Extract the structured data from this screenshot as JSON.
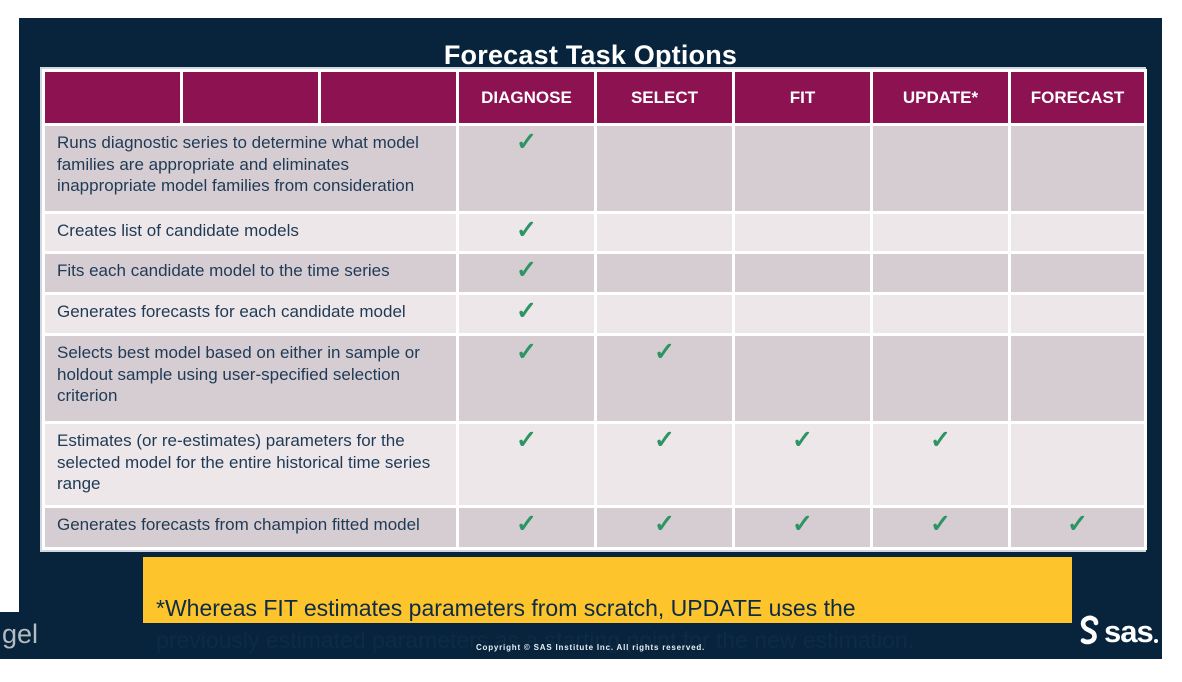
{
  "title": "Forecast Task Options",
  "table": {
    "columns": [
      "DIAGNOSE",
      "SELECT",
      "FIT",
      "UPDATE*",
      "FORECAST"
    ],
    "check_glyph": "✓",
    "rows": [
      {
        "task": "Runs diagnostic series to determine what model families are appropriate and eliminates inappropriate model families from consideration",
        "checks": [
          true,
          false,
          false,
          false,
          false
        ]
      },
      {
        "task": "Creates list of candidate models",
        "checks": [
          true,
          false,
          false,
          false,
          false
        ]
      },
      {
        "task": "Fits each candidate model to the time series",
        "checks": [
          true,
          false,
          false,
          false,
          false
        ]
      },
      {
        "task": "Generates forecasts for each candidate model",
        "checks": [
          true,
          false,
          false,
          false,
          false
        ]
      },
      {
        "task": "Selects best model based on either in sample or holdout sample using user-specified selection criterion",
        "checks": [
          true,
          true,
          false,
          false,
          false
        ]
      },
      {
        "task": "Estimates (or re-estimates) parameters for the selected model for the entire historical time series range",
        "checks": [
          true,
          true,
          true,
          true,
          false
        ]
      },
      {
        "task": "Generates forecasts from champion fitted model",
        "checks": [
          true,
          true,
          true,
          true,
          true
        ]
      }
    ]
  },
  "note": "*Whereas FIT estimates parameters from scratch, UPDATE uses the\npreviously estimated parameters as a starting point for the new estimation.",
  "footer": {
    "copyright": "Copyright © SAS Institute Inc. All rights reserved.",
    "watermark": "gel",
    "logo_text": "sas"
  },
  "colors": {
    "slide_bg": "#07243C",
    "dot": "#17384E",
    "header_bg": "#8C1252",
    "row_dark": "#D6CDD3",
    "row_light": "#EDE7EA",
    "check_green": "#2D9463",
    "note_bg": "#FDC42C",
    "body_text": "#1E3A54"
  }
}
